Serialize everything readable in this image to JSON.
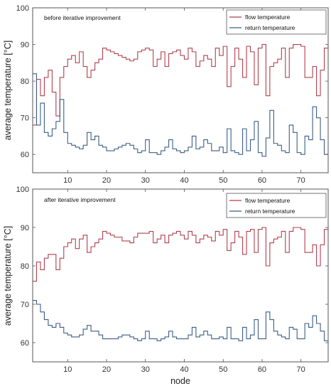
{
  "chart_data": [
    {
      "type": "line",
      "step": true,
      "annotation": "before iterative improvement",
      "xlabel": "",
      "ylabel": "average temperature [°C]",
      "xlim": [
        1,
        77
      ],
      "ylim": [
        55,
        100
      ],
      "xticks": [
        10,
        20,
        30,
        40,
        50,
        60,
        70
      ],
      "yticks": [
        60,
        70,
        80,
        90,
        100
      ],
      "grid": false,
      "legend_position": "top-right",
      "x": [
        1,
        2,
        3,
        4,
        5,
        6,
        7,
        8,
        9,
        10,
        11,
        12,
        13,
        14,
        15,
        16,
        17,
        18,
        19,
        20,
        21,
        22,
        23,
        24,
        25,
        26,
        27,
        28,
        29,
        30,
        31,
        32,
        33,
        34,
        35,
        36,
        37,
        38,
        39,
        40,
        41,
        42,
        43,
        44,
        45,
        46,
        47,
        48,
        49,
        50,
        51,
        52,
        53,
        54,
        55,
        56,
        57,
        58,
        59,
        60,
        61,
        62,
        63,
        64,
        65,
        66,
        67,
        68,
        69,
        70,
        71,
        72,
        73,
        74,
        75,
        76,
        77
      ],
      "series": [
        {
          "name": "flow temperature",
          "color": "#b0404d",
          "values": [
            68,
            80.5,
            76,
            81,
            83,
            77,
            70.5,
            81,
            84,
            86,
            87,
            85,
            88,
            84,
            81,
            83,
            85,
            86,
            89,
            88.5,
            88,
            87.5,
            87,
            86.5,
            86,
            85.5,
            86,
            88,
            88.5,
            89,
            88.5,
            84,
            86,
            88,
            84,
            87.5,
            88,
            88.5,
            87,
            86,
            89,
            88,
            84,
            85.5,
            87,
            86,
            84,
            89,
            87,
            89.5,
            78.5,
            84,
            89,
            86,
            81,
            89.5,
            88,
            79,
            89,
            90,
            76,
            84,
            85,
            86,
            89,
            81,
            89,
            90,
            90,
            89.5,
            81,
            81,
            84,
            76,
            83,
            89,
            90
          ]
        },
        {
          "name": "return temperature",
          "color": "#3c5d85",
          "values": [
            82,
            68,
            74,
            66,
            65,
            67,
            69,
            75,
            66,
            63,
            62.5,
            62,
            61.5,
            62.5,
            66,
            64,
            65,
            62.5,
            62,
            61,
            61,
            61.5,
            62,
            62.5,
            63,
            62.5,
            61.5,
            60.5,
            61,
            64,
            60.5,
            60.5,
            60,
            61,
            62,
            64,
            61.5,
            61,
            60.5,
            61,
            62,
            65,
            61.5,
            62,
            64,
            63,
            61,
            61,
            62,
            60.5,
            67,
            61,
            60.5,
            60,
            67,
            61,
            64,
            69,
            60.5,
            59.5,
            64.5,
            72,
            63,
            62.5,
            61,
            60.5,
            68,
            66,
            60.5,
            60,
            65,
            64,
            73,
            70,
            64,
            60,
            60
          ]
        }
      ]
    },
    {
      "type": "line",
      "step": true,
      "annotation": "after iterative improvement",
      "xlabel": "node",
      "ylabel": "average temperature [°C]",
      "xlim": [
        1,
        77
      ],
      "ylim": [
        55,
        100
      ],
      "xticks": [
        10,
        20,
        30,
        40,
        50,
        60,
        70
      ],
      "yticks": [
        60,
        70,
        80,
        90,
        100
      ],
      "grid": false,
      "legend_position": "top-right",
      "x": [
        1,
        2,
        3,
        4,
        5,
        6,
        7,
        8,
        9,
        10,
        11,
        12,
        13,
        14,
        15,
        16,
        17,
        18,
        19,
        20,
        21,
        22,
        23,
        24,
        25,
        26,
        27,
        28,
        29,
        30,
        31,
        32,
        33,
        34,
        35,
        36,
        37,
        38,
        39,
        40,
        41,
        42,
        43,
        44,
        45,
        46,
        47,
        48,
        49,
        50,
        51,
        52,
        53,
        54,
        55,
        56,
        57,
        58,
        59,
        60,
        61,
        62,
        63,
        64,
        65,
        66,
        67,
        68,
        69,
        70,
        71,
        72,
        73,
        74,
        75,
        76,
        77
      ],
      "series": [
        {
          "name": "flow temperature",
          "color": "#b0404d",
          "values": [
            76,
            81,
            79,
            82,
            83,
            83,
            79,
            82,
            85,
            86,
            87,
            84.5,
            87,
            88,
            83.5,
            85,
            86,
            87,
            89,
            88.5,
            88,
            87.5,
            87.5,
            86.5,
            86.5,
            86,
            87.5,
            88.5,
            88.5,
            88.5,
            89,
            86,
            87,
            88,
            86,
            88,
            88.5,
            89,
            88,
            87,
            89,
            88,
            86,
            87,
            88,
            87.5,
            86.5,
            89,
            88,
            89.5,
            84,
            86,
            89,
            87.5,
            83,
            89,
            89.5,
            83.5,
            89.5,
            90,
            80,
            86,
            87,
            87.5,
            89,
            83.5,
            89,
            90,
            90,
            89.5,
            83.5,
            83.5,
            85.5,
            80,
            85.5,
            89.5,
            90
          ]
        },
        {
          "name": "return temperature",
          "color": "#3c5d85",
          "values": [
            71,
            70,
            68,
            66,
            64.5,
            64,
            65,
            64,
            62.5,
            62,
            61.5,
            61.5,
            62,
            63.5,
            64.5,
            63,
            63,
            62,
            61,
            61,
            61,
            61,
            61.5,
            62,
            62,
            61.5,
            61,
            60.5,
            61,
            63,
            61,
            61,
            60.5,
            61,
            61.5,
            63,
            61.5,
            61,
            61,
            61,
            62,
            64,
            61.5,
            62,
            63,
            62,
            61,
            61,
            61.5,
            61,
            64,
            61,
            61,
            60.5,
            64,
            61,
            62,
            66,
            61,
            61,
            68,
            66,
            63,
            62,
            61.5,
            61,
            64,
            63.5,
            61,
            61,
            65,
            64,
            67,
            65,
            63,
            60.5,
            60
          ]
        }
      ]
    }
  ]
}
